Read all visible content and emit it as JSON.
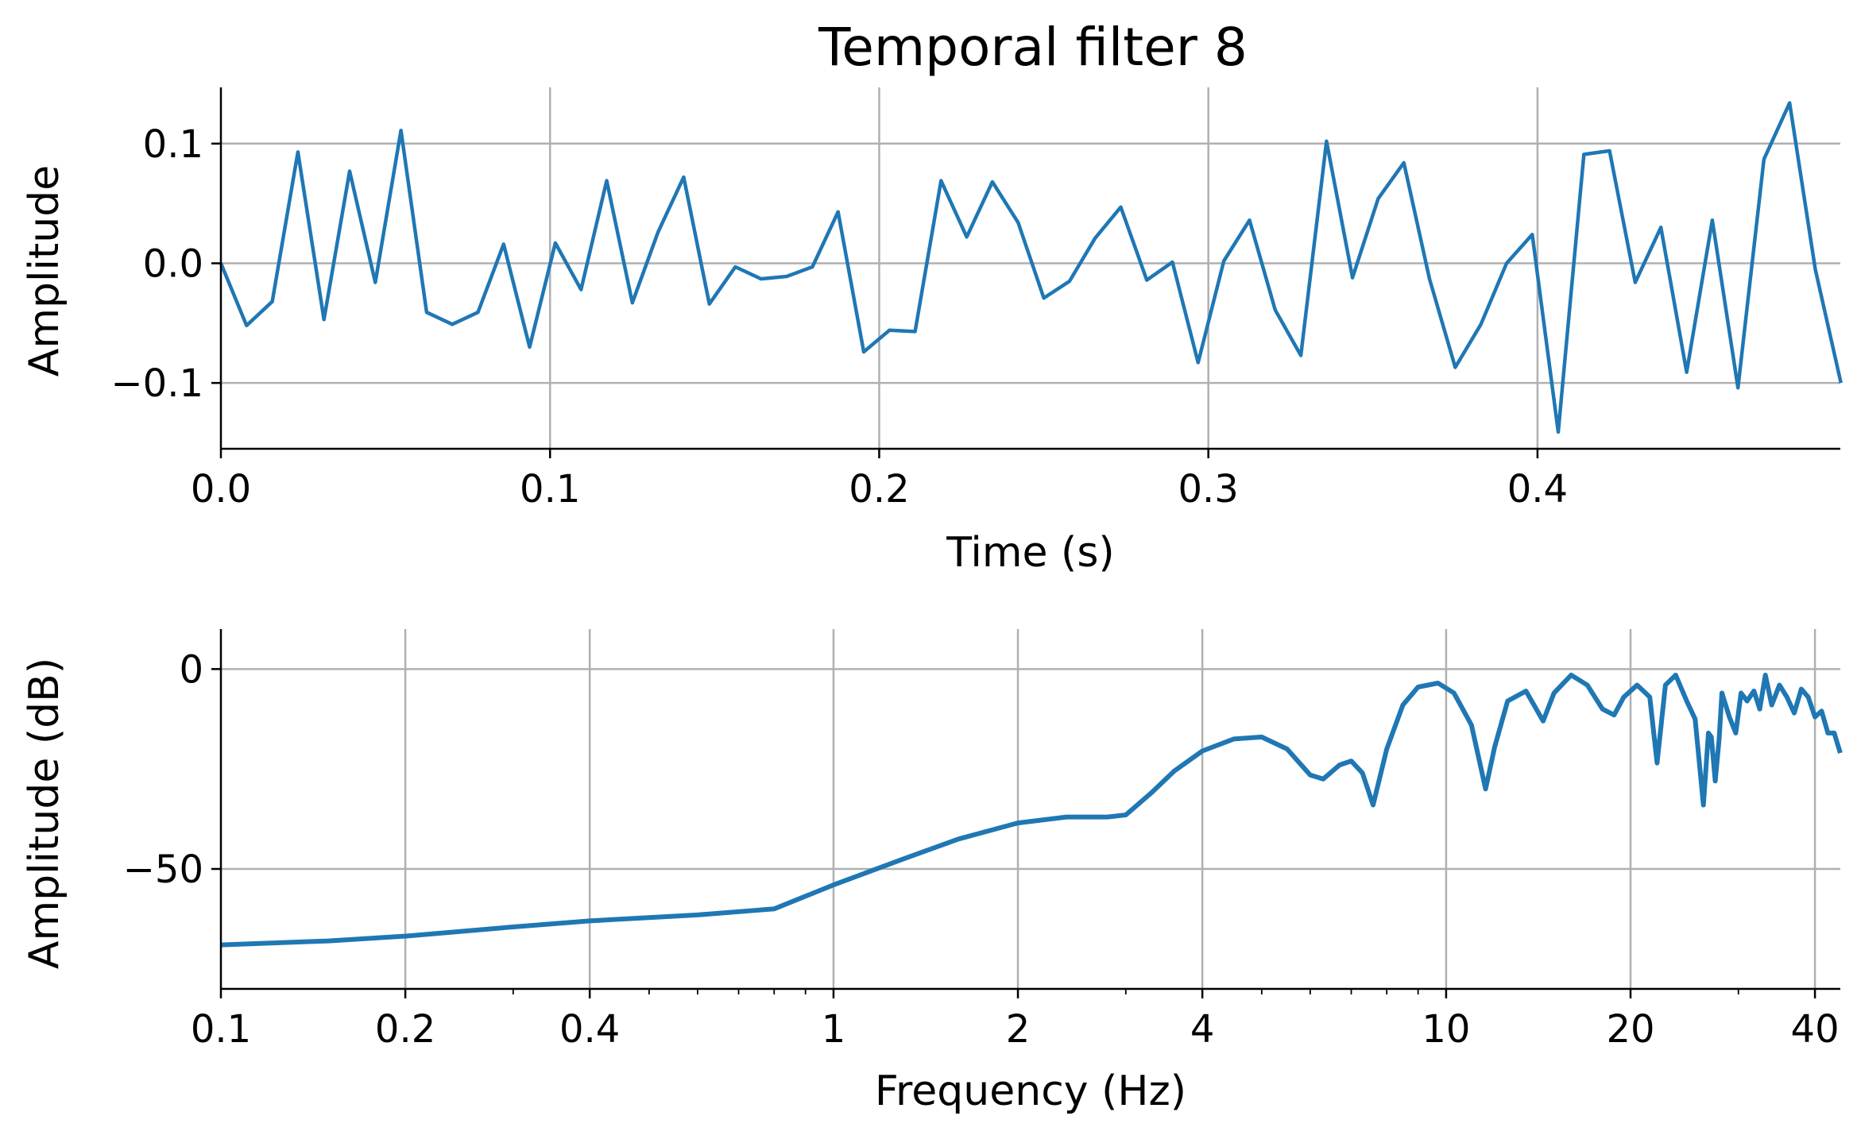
{
  "title": "Temporal filter 8",
  "chart_data": [
    {
      "type": "line",
      "xlabel": "Time (s)",
      "ylabel": "Amplitude",
      "xlim": [
        0.0,
        0.492
      ],
      "ylim": [
        -0.155,
        0.147
      ],
      "xticks": [
        0.0,
        0.1,
        0.2,
        0.3,
        0.4
      ],
      "xtick_labels": [
        "0.0",
        "0.1",
        "0.2",
        "0.3",
        "0.4"
      ],
      "yticks": [
        0.1,
        0.0,
        -0.1
      ],
      "ytick_labels": [
        "0.1",
        "0.0",
        "−0.1"
      ],
      "grid": true,
      "color": "#1f77b4",
      "x": [
        0.0,
        0.0078,
        0.0156,
        0.0234,
        0.0313,
        0.0391,
        0.0469,
        0.0547,
        0.0625,
        0.0703,
        0.0781,
        0.0859,
        0.0938,
        0.1016,
        0.1094,
        0.1172,
        0.125,
        0.1328,
        0.1406,
        0.1484,
        0.1563,
        0.1641,
        0.1719,
        0.1797,
        0.1875,
        0.1953,
        0.2031,
        0.2109,
        0.2188,
        0.2266,
        0.2344,
        0.2422,
        0.25,
        0.2578,
        0.2656,
        0.2734,
        0.2813,
        0.2891,
        0.2969,
        0.3047,
        0.3125,
        0.3203,
        0.3281,
        0.3359,
        0.3438,
        0.3516,
        0.3594,
        0.3672,
        0.375,
        0.3828,
        0.3906,
        0.3984,
        0.4063,
        0.4141,
        0.4219,
        0.4297,
        0.4375,
        0.4453,
        0.4531,
        0.4609,
        0.4688,
        0.4766,
        0.4844,
        0.4922
      ],
      "y": [
        0.0,
        -0.052,
        -0.032,
        0.093,
        -0.047,
        0.077,
        -0.016,
        0.111,
        -0.041,
        -0.051,
        -0.041,
        0.016,
        -0.07,
        0.017,
        -0.022,
        0.069,
        -0.033,
        0.026,
        0.072,
        -0.034,
        -0.003,
        -0.013,
        -0.011,
        -0.003,
        0.043,
        -0.074,
        -0.056,
        -0.057,
        0.069,
        0.022,
        0.068,
        0.034,
        -0.029,
        -0.015,
        0.021,
        0.047,
        -0.014,
        0.001,
        -0.083,
        0.002,
        0.036,
        -0.039,
        -0.077,
        0.102,
        -0.012,
        0.054,
        0.084,
        -0.013,
        -0.087,
        -0.051,
        0.0,
        0.024,
        -0.141,
        0.091,
        0.094,
        -0.016,
        0.03,
        -0.091,
        0.036,
        -0.104,
        0.087,
        0.134,
        -0.005,
        -0.1
      ]
    },
    {
      "type": "line",
      "xlabel": "Frequency (Hz)",
      "ylabel": "Amplitude (dB)",
      "xscale": "log",
      "xlim": [
        0.1,
        44
      ],
      "ylim": [
        -80,
        10
      ],
      "xticks": [
        0.1,
        0.2,
        0.4,
        1,
        2,
        4,
        10,
        20,
        40
      ],
      "xtick_labels": [
        "0.1",
        "0.2",
        "0.4",
        "1",
        "2",
        "4",
        "10",
        "20",
        "40"
      ],
      "yticks": [
        0,
        -50
      ],
      "ytick_labels": [
        "0",
        "−50"
      ],
      "grid": true,
      "color": "#1f77b4",
      "x": [
        0.1,
        0.15,
        0.2,
        0.3,
        0.4,
        0.6,
        0.8,
        1.0,
        1.3,
        1.6,
        2.0,
        2.4,
        2.8,
        3.0,
        3.3,
        3.6,
        4.0,
        4.5,
        5.0,
        5.5,
        6.0,
        6.3,
        6.7,
        7.0,
        7.3,
        7.6,
        8.0,
        8.5,
        9.0,
        9.7,
        10.3,
        11.0,
        11.6,
        12.0,
        12.6,
        13.5,
        14.4,
        15.0,
        16.0,
        17.0,
        18.0,
        18.8,
        19.5,
        20.5,
        21.5,
        22.1,
        22.8,
        23.7,
        24.7,
        25.5,
        26.3,
        26.8,
        27.1,
        27.5,
        27.9,
        28.2,
        29.0,
        29.7,
        30.3,
        31.0,
        31.8,
        32.5,
        33.2,
        34.0,
        35.0,
        36.0,
        37.0,
        38.0,
        39.0,
        40.0,
        41.0,
        42.0,
        43.0,
        44.0
      ],
      "y": [
        -69,
        -68,
        -66.8,
        -64.5,
        -63,
        -61.5,
        -60,
        -54,
        -47.5,
        -42.5,
        -38.5,
        -37,
        -37,
        -36.5,
        -31,
        -25.5,
        -20.5,
        -17.5,
        -17,
        -20,
        -26.5,
        -27.5,
        -24,
        -23,
        -26,
        -34,
        -20,
        -9,
        -4.5,
        -3.5,
        -6,
        -14,
        -30,
        -19.5,
        -8,
        -5.5,
        -13,
        -6,
        -1.5,
        -4,
        -10,
        -11.5,
        -7,
        -4,
        -7,
        -23.5,
        -4,
        -1.5,
        -8,
        -12.5,
        -34,
        -16,
        -17,
        -28,
        -17.5,
        -6,
        -12,
        -16,
        -6,
        -8,
        -5.5,
        -10,
        -1.5,
        -9,
        -4,
        -7,
        -11,
        -5,
        -7,
        -12,
        -10.5,
        -16,
        -16,
        -21
      ]
    }
  ]
}
